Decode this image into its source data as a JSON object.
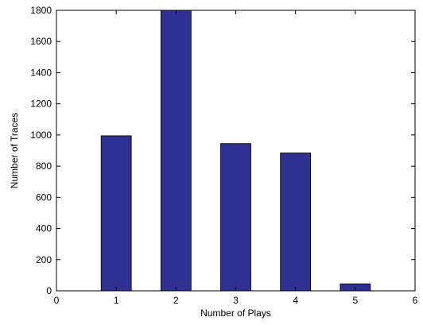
{
  "chart_data": {
    "type": "bar",
    "x": [
      1,
      2,
      3,
      4,
      5
    ],
    "values": [
      995,
      1800,
      945,
      885,
      45
    ],
    "xlabel": "Number of Plays",
    "ylabel": "Number of Traces",
    "xlim": [
      0,
      6
    ],
    "ylim": [
      0,
      1800
    ],
    "xticks": [
      0,
      1,
      2,
      3,
      4,
      5,
      6
    ],
    "yticks": [
      0,
      200,
      400,
      600,
      800,
      1000,
      1200,
      1400,
      1600,
      1800
    ],
    "bar_color": "#2e3192",
    "grid": false,
    "legend": "none"
  }
}
